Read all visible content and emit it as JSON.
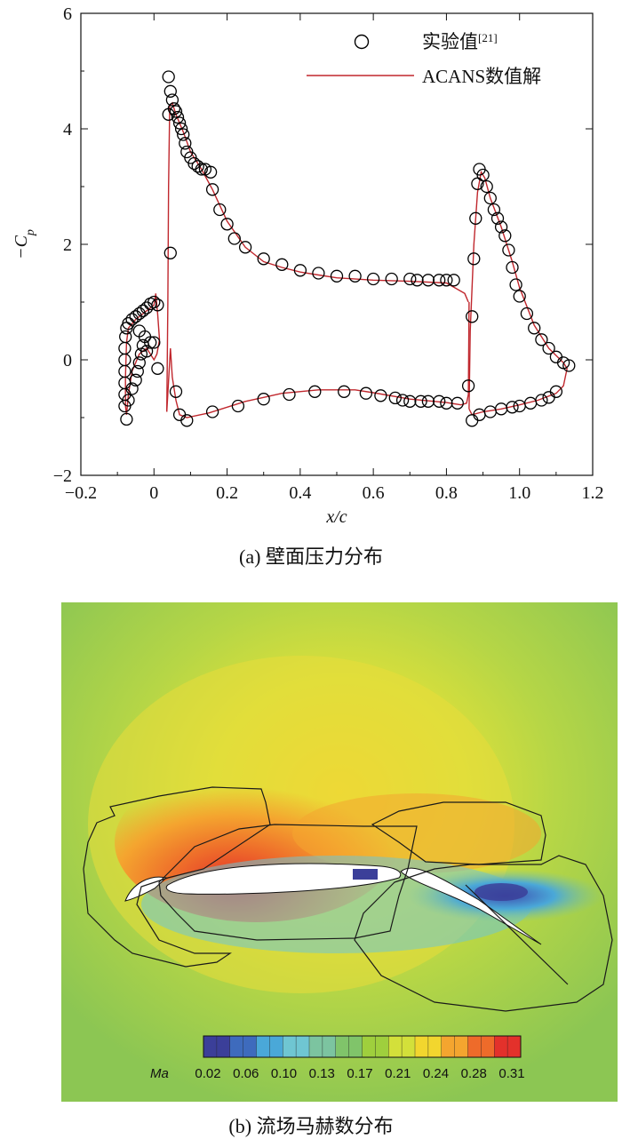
{
  "chart_data": [
    {
      "type": "scatter",
      "panel_caption": "(a) 壁面压力分布",
      "xlabel": "x/c",
      "ylabel": "−C_p",
      "xlim": [
        -0.2,
        1.2
      ],
      "ylim": [
        -2,
        6
      ],
      "x_ticks": [
        "−0.2",
        "0",
        "0.2",
        "0.4",
        "0.6",
        "0.8",
        "1.0",
        "1.2"
      ],
      "y_ticks": [
        "6",
        "4",
        "2",
        "0",
        "−2"
      ],
      "legend_placement": "top-right",
      "series": [
        {
          "name": "实验值[21]",
          "marker": "open-circle",
          "color": "#000000",
          "points": [
            [
              -0.08,
              -0.8
            ],
            [
              -0.08,
              -0.6
            ],
            [
              -0.08,
              -0.4
            ],
            [
              -0.08,
              -0.2
            ],
            [
              -0.08,
              0
            ],
            [
              -0.08,
              0.2
            ],
            [
              -0.078,
              0.4
            ],
            [
              -0.075,
              0.55
            ],
            [
              -0.07,
              0.63
            ],
            [
              -0.06,
              0.7
            ],
            [
              -0.05,
              0.75
            ],
            [
              -0.04,
              0.8
            ],
            [
              -0.03,
              0.85
            ],
            [
              -0.02,
              0.9
            ],
            [
              -0.01,
              0.97
            ],
            [
              0,
              1.0
            ],
            [
              0.01,
              0.95
            ],
            [
              -0.075,
              -1.03
            ],
            [
              -0.07,
              -0.7
            ],
            [
              -0.06,
              -0.5
            ],
            [
              -0.05,
              -0.35
            ],
            [
              -0.045,
              -0.2
            ],
            [
              -0.04,
              -0.05
            ],
            [
              -0.035,
              0.1
            ],
            [
              -0.03,
              0.25
            ],
            [
              -0.025,
              0.4
            ],
            [
              -0.04,
              0.5
            ],
            [
              -0.02,
              0.15
            ],
            [
              -0.01,
              0.3
            ],
            [
              0,
              0.3
            ],
            [
              0.01,
              -0.15
            ],
            [
              0.04,
              4.9
            ],
            [
              0.045,
              4.65
            ],
            [
              0.05,
              4.5
            ],
            [
              0.055,
              4.35
            ],
            [
              0.06,
              4.3
            ],
            [
              0.065,
              4.2
            ],
            [
              0.07,
              4.1
            ],
            [
              0.075,
              4.0
            ],
            [
              0.08,
              3.9
            ],
            [
              0.085,
              3.75
            ],
            [
              0.09,
              3.6
            ],
            [
              0.1,
              3.5
            ],
            [
              0.11,
              3.4
            ],
            [
              0.12,
              3.35
            ],
            [
              0.13,
              3.3
            ],
            [
              0.14,
              3.3
            ],
            [
              0.155,
              3.25
            ],
            [
              0.16,
              2.95
            ],
            [
              0.18,
              2.6
            ],
            [
              0.2,
              2.35
            ],
            [
              0.22,
              2.1
            ],
            [
              0.25,
              1.95
            ],
            [
              0.3,
              1.75
            ],
            [
              0.35,
              1.65
            ],
            [
              0.4,
              1.55
            ],
            [
              0.45,
              1.5
            ],
            [
              0.5,
              1.45
            ],
            [
              0.55,
              1.45
            ],
            [
              0.6,
              1.4
            ],
            [
              0.65,
              1.4
            ],
            [
              0.7,
              1.4
            ],
            [
              0.72,
              1.38
            ],
            [
              0.75,
              1.38
            ],
            [
              0.78,
              1.38
            ],
            [
              0.8,
              1.38
            ],
            [
              0.82,
              1.38
            ],
            [
              0.04,
              4.25
            ],
            [
              0.045,
              1.85
            ],
            [
              0.06,
              -0.55
            ],
            [
              0.07,
              -0.95
            ],
            [
              0.09,
              -1.05
            ],
            [
              0.16,
              -0.9
            ],
            [
              0.23,
              -0.8
            ],
            [
              0.3,
              -0.68
            ],
            [
              0.37,
              -0.6
            ],
            [
              0.44,
              -0.55
            ],
            [
              0.52,
              -0.55
            ],
            [
              0.58,
              -0.58
            ],
            [
              0.62,
              -0.62
            ],
            [
              0.66,
              -0.66
            ],
            [
              0.68,
              -0.7
            ],
            [
              0.7,
              -0.72
            ],
            [
              0.73,
              -0.72
            ],
            [
              0.75,
              -0.72
            ],
            [
              0.78,
              -0.72
            ],
            [
              0.8,
              -0.75
            ],
            [
              0.83,
              -0.75
            ],
            [
              0.86,
              -0.45
            ],
            [
              0.87,
              0.75
            ],
            [
              0.875,
              1.75
            ],
            [
              0.88,
              2.45
            ],
            [
              0.885,
              3.05
            ],
            [
              0.89,
              3.3
            ],
            [
              0.9,
              3.2
            ],
            [
              0.91,
              3.0
            ],
            [
              0.92,
              2.8
            ],
            [
              0.93,
              2.6
            ],
            [
              0.94,
              2.45
            ],
            [
              0.95,
              2.3
            ],
            [
              0.96,
              2.15
            ],
            [
              0.97,
              1.9
            ],
            [
              0.98,
              1.6
            ],
            [
              0.99,
              1.3
            ],
            [
              1.0,
              1.1
            ],
            [
              1.02,
              0.8
            ],
            [
              1.04,
              0.55
            ],
            [
              1.06,
              0.35
            ],
            [
              1.08,
              0.2
            ],
            [
              1.1,
              0.05
            ],
            [
              1.12,
              -0.05
            ],
            [
              1.135,
              -0.1
            ],
            [
              0.87,
              -1.05
            ],
            [
              0.89,
              -0.95
            ],
            [
              0.92,
              -0.9
            ],
            [
              0.95,
              -0.85
            ],
            [
              0.98,
              -0.82
            ],
            [
              1.0,
              -0.8
            ],
            [
              1.03,
              -0.75
            ],
            [
              1.06,
              -0.7
            ],
            [
              1.08,
              -0.65
            ],
            [
              1.1,
              -0.55
            ]
          ]
        },
        {
          "name": "ACANS数值解",
          "marker": "line",
          "color": "#c0272d",
          "segments": [
            [
              [
                -0.075,
                -0.95
              ],
              [
                -0.078,
                -0.8
              ],
              [
                -0.078,
                -0.3
              ],
              [
                -0.075,
                0.3
              ],
              [
                -0.07,
                0.55
              ],
              [
                -0.05,
                0.7
              ],
              [
                -0.02,
                0.85
              ],
              [
                0,
                0.95
              ],
              [
                0.005,
                1.15
              ],
              [
                0.01,
                0.8
              ],
              [
                0.015,
                0.35
              ],
              [
                0.008,
                0.1
              ],
              [
                0,
                0.0
              ],
              [
                -0.01,
                0.1
              ],
              [
                -0.02,
                0.2
              ],
              [
                -0.04,
                0.1
              ],
              [
                -0.06,
                -0.2
              ],
              [
                -0.07,
                -0.6
              ],
              [
                -0.075,
                -0.95
              ]
            ],
            [
              [
                0.035,
                -0.9
              ],
              [
                0.038,
                1.0
              ],
              [
                0.04,
                3.0
              ],
              [
                0.043,
                4.4
              ],
              [
                0.05,
                4.45
              ],
              [
                0.06,
                4.25
              ],
              [
                0.08,
                3.95
              ],
              [
                0.1,
                3.6
              ],
              [
                0.13,
                3.3
              ],
              [
                0.16,
                2.95
              ],
              [
                0.2,
                2.4
              ],
              [
                0.25,
                1.95
              ],
              [
                0.3,
                1.7
              ],
              [
                0.35,
                1.6
              ],
              [
                0.4,
                1.52
              ],
              [
                0.45,
                1.47
              ],
              [
                0.5,
                1.42
              ],
              [
                0.6,
                1.38
              ],
              [
                0.7,
                1.36
              ],
              [
                0.8,
                1.33
              ],
              [
                0.85,
                1.15
              ],
              [
                0.86,
                1.0
              ]
            ],
            [
              [
                0.035,
                -0.9
              ],
              [
                0.045,
                0.2
              ],
              [
                0.05,
                -0.3
              ],
              [
                0.06,
                -0.7
              ],
              [
                0.07,
                -0.95
              ],
              [
                0.09,
                -1.0
              ],
              [
                0.15,
                -0.92
              ],
              [
                0.2,
                -0.82
              ],
              [
                0.25,
                -0.72
              ],
              [
                0.3,
                -0.65
              ],
              [
                0.35,
                -0.58
              ],
              [
                0.45,
                -0.52
              ],
              [
                0.55,
                -0.52
              ],
              [
                0.6,
                -0.57
              ],
              [
                0.7,
                -0.68
              ],
              [
                0.8,
                -0.74
              ],
              [
                0.84,
                -0.78
              ],
              [
                0.855,
                -0.75
              ],
              [
                0.86,
                -0.6
              ],
              [
                0.862,
                1.0
              ]
            ],
            [
              [
                0.862,
                -0.85
              ],
              [
                0.865,
                0.5
              ],
              [
                0.875,
                2.0
              ],
              [
                0.885,
                2.9
              ],
              [
                0.895,
                3.25
              ],
              [
                0.905,
                3.15
              ],
              [
                0.92,
                2.8
              ],
              [
                0.95,
                2.3
              ],
              [
                0.98,
                1.7
              ],
              [
                1.0,
                1.25
              ],
              [
                1.04,
                0.6
              ],
              [
                1.08,
                0.2
              ],
              [
                1.12,
                -0.05
              ],
              [
                1.13,
                -0.15
              ],
              [
                1.12,
                -0.45
              ],
              [
                1.1,
                -0.58
              ],
              [
                1.05,
                -0.7
              ],
              [
                1.0,
                -0.78
              ],
              [
                0.95,
                -0.85
              ],
              [
                0.9,
                -0.9
              ],
              [
                0.87,
                -0.95
              ],
              [
                0.862,
                -0.85
              ]
            ]
          ]
        }
      ]
    },
    {
      "type": "heatmap",
      "panel_caption": "(b) 流场马赫数分布",
      "colorbar_label": "Ma",
      "colorbar_ticks": [
        "0.02",
        "0.06",
        "0.10",
        "0.13",
        "0.17",
        "0.21",
        "0.24",
        "0.28",
        "0.31"
      ],
      "colormap": [
        "#3b3f99",
        "#3e6bbd",
        "#4aa8d8",
        "#6fc6d2",
        "#7cc4a0",
        "#80c46a",
        "#9fcf3d",
        "#d3e03a",
        "#f2d62e",
        "#f4a52f",
        "#ee6b2a",
        "#e3312b"
      ]
    }
  ]
}
